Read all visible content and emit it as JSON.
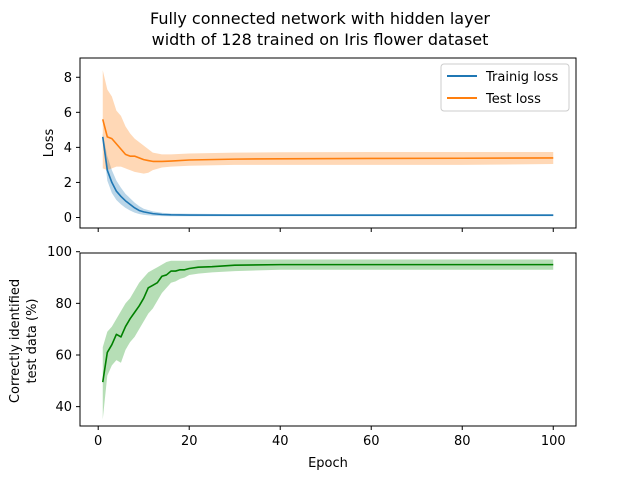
{
  "chart_data": [
    {
      "type": "line",
      "title_lines": [
        "Fully connected network with hidden layer",
        "width of 128 trained on Iris flower dataset"
      ],
      "xlabel": "",
      "ylabel": "Loss",
      "xlim": [
        -4,
        105
      ],
      "ylim": [
        -0.6,
        9.1
      ],
      "xticks": [
        0,
        20,
        40,
        60,
        80,
        100
      ],
      "show_xticklabels": false,
      "yticks": [
        0,
        2,
        4,
        6,
        8
      ],
      "legend_position": "upper right",
      "series": [
        {
          "name": "Trainig loss",
          "color": "#1f77b4",
          "x": [
            1,
            2,
            3,
            4,
            5,
            6,
            7,
            8,
            9,
            10,
            12,
            14,
            16,
            20,
            30,
            40,
            60,
            80,
            100
          ],
          "y": [
            4.6,
            2.7,
            2.0,
            1.5,
            1.2,
            0.95,
            0.75,
            0.55,
            0.4,
            0.32,
            0.22,
            0.17,
            0.15,
            0.14,
            0.13,
            0.13,
            0.13,
            0.13,
            0.13
          ],
          "lower": [
            4.4,
            2.1,
            1.4,
            1.0,
            0.75,
            0.55,
            0.4,
            0.28,
            0.2,
            0.15,
            0.1,
            0.08,
            0.07,
            0.07,
            0.07,
            0.07,
            0.07,
            0.07,
            0.07
          ],
          "upper": [
            4.8,
            3.5,
            2.7,
            2.1,
            1.7,
            1.35,
            1.1,
            0.85,
            0.65,
            0.5,
            0.35,
            0.27,
            0.23,
            0.21,
            0.19,
            0.19,
            0.19,
            0.19,
            0.19
          ]
        },
        {
          "name": "Test loss",
          "color": "#ff7f0e",
          "x": [
            1,
            2,
            3,
            4,
            5,
            6,
            7,
            8,
            9,
            10,
            11,
            12,
            14,
            16,
            20,
            30,
            40,
            60,
            80,
            100
          ],
          "y": [
            5.6,
            4.6,
            4.5,
            4.2,
            3.9,
            3.6,
            3.5,
            3.5,
            3.4,
            3.3,
            3.25,
            3.2,
            3.2,
            3.22,
            3.28,
            3.33,
            3.35,
            3.37,
            3.38,
            3.4
          ],
          "lower": [
            2.8,
            2.7,
            2.8,
            2.9,
            2.9,
            2.8,
            2.7,
            2.6,
            2.55,
            2.5,
            2.55,
            2.7,
            2.85,
            2.9,
            2.95,
            3.0,
            3.0,
            3.0,
            3.0,
            3.05
          ],
          "upper": [
            8.4,
            7.3,
            6.9,
            6.1,
            5.8,
            5.2,
            4.8,
            4.5,
            4.3,
            4.1,
            3.9,
            3.7,
            3.6,
            3.6,
            3.65,
            3.7,
            3.72,
            3.74,
            3.74,
            3.74
          ]
        }
      ]
    },
    {
      "type": "line",
      "xlabel": "Epoch",
      "ylabel_lines": [
        "Correctly identified",
        "test data (%)"
      ],
      "xlim": [
        -4,
        105
      ],
      "ylim": [
        32.5,
        99.5
      ],
      "xticks": [
        0,
        20,
        40,
        60,
        80,
        100
      ],
      "show_xticklabels": true,
      "yticks": [
        40,
        60,
        80,
        100
      ],
      "series": [
        {
          "color": "#008000",
          "fill_color": "#3fa83f",
          "x": [
            1,
            2,
            3,
            4,
            5,
            6,
            7,
            8,
            9,
            10,
            11,
            12,
            13,
            14,
            15,
            16,
            17,
            18,
            19,
            20,
            22,
            25,
            30,
            40,
            60,
            80,
            100
          ],
          "y": [
            49.5,
            61,
            64,
            68,
            67,
            71,
            74,
            76.5,
            79,
            82,
            86,
            87,
            88,
            90.5,
            91,
            92.5,
            92.5,
            93,
            93,
            93.5,
            94,
            94.2,
            94.8,
            95,
            95,
            95,
            95
          ],
          "lower": [
            35,
            52,
            56,
            58,
            57,
            62,
            65,
            67,
            70,
            73,
            76,
            78,
            81,
            84,
            86,
            88,
            88.5,
            89.5,
            90,
            91,
            91.5,
            92,
            92.5,
            93,
            93,
            93,
            93
          ],
          "upper": [
            63,
            69,
            71,
            74,
            77,
            80,
            82,
            85,
            88,
            90,
            92,
            93,
            94,
            95,
            96,
            96.5,
            96.5,
            96.5,
            96.5,
            96.5,
            96.8,
            97,
            97,
            97,
            97,
            97,
            97
          ]
        }
      ]
    }
  ]
}
